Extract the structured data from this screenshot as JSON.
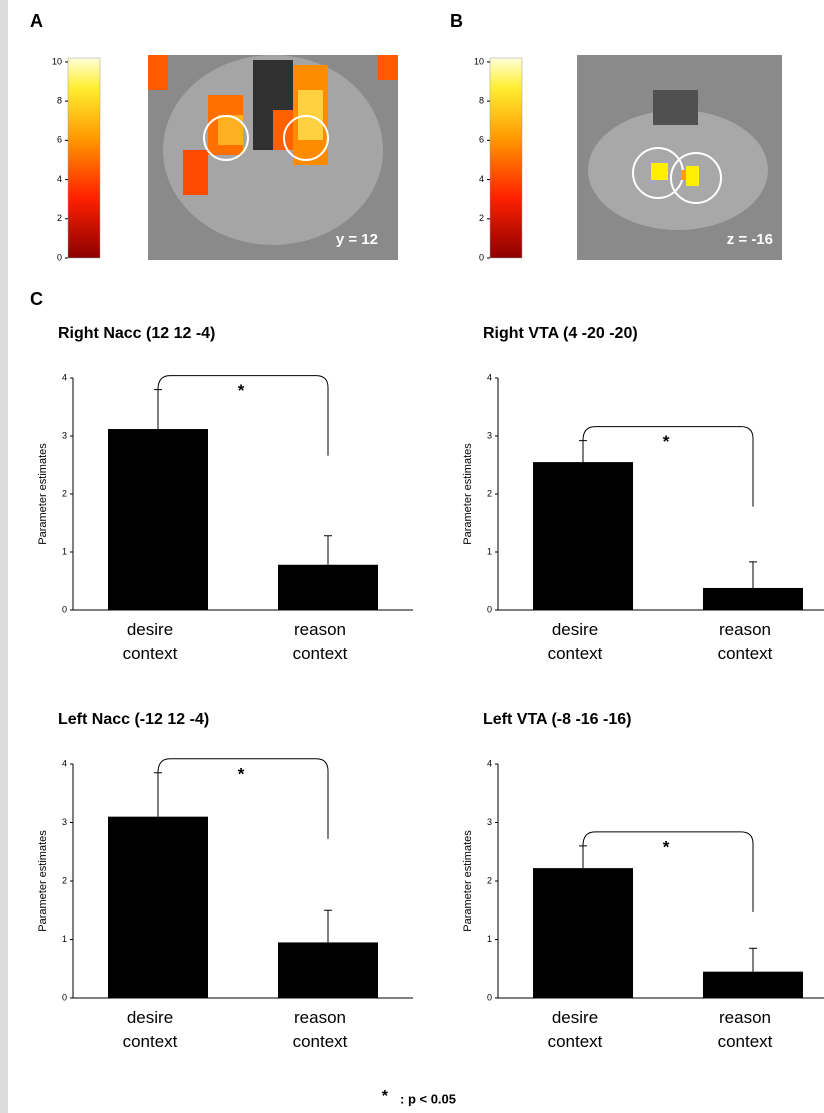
{
  "panel_labels": [
    "A",
    "B",
    "C"
  ],
  "brain_images": [
    {
      "colorbar_lim": [
        0,
        10.2
      ],
      "colorbar_ticks": [
        0,
        2,
        4,
        6,
        8,
        10
      ],
      "slice_label": "y = 12"
    },
    {
      "colorbar_lim": [
        0,
        10.2
      ],
      "colorbar_ticks": [
        0,
        2,
        4,
        6,
        8,
        10
      ],
      "slice_label": "z = -16"
    }
  ],
  "chart_data": [
    {
      "type": "bar",
      "title": "Right Nacc (12 12 -4)",
      "ylabel": "Parameter estimates",
      "categories": [
        "desire context",
        "reason context"
      ],
      "values": [
        3.12,
        0.78
      ],
      "errors": [
        0.68,
        0.5
      ],
      "color": "#000000",
      "ylim": [
        0,
        4
      ],
      "yticks": [
        0,
        1,
        2,
        3,
        4
      ],
      "annotation": "*"
    },
    {
      "type": "bar",
      "title": "Right VTA (4 -20 -20)",
      "ylabel": "Parameter estimates",
      "categories": [
        "desire context",
        "reason context"
      ],
      "values": [
        2.55,
        0.38
      ],
      "errors": [
        0.37,
        0.45
      ],
      "color": "#000000",
      "ylim": [
        0,
        4
      ],
      "yticks": [
        0,
        1,
        2,
        3,
        4
      ],
      "annotation": "*"
    },
    {
      "type": "bar",
      "title": "Left Nacc (-12 12 -4)",
      "ylabel": "Parameter estimates",
      "categories": [
        "desire context",
        "reason context"
      ],
      "values": [
        3.1,
        0.95
      ],
      "errors": [
        0.75,
        0.55
      ],
      "color": "#000000",
      "ylim": [
        0,
        4
      ],
      "yticks": [
        0,
        1,
        2,
        3,
        4
      ],
      "annotation": "*"
    },
    {
      "type": "bar",
      "title": "Left VTA (-8 -16 -16)",
      "ylabel": "Parameter estimates",
      "categories": [
        "desire context",
        "reason context"
      ],
      "values": [
        2.22,
        0.45
      ],
      "errors": [
        0.38,
        0.4
      ],
      "color": "#000000",
      "ylim": [
        0,
        4
      ],
      "yticks": [
        0,
        1,
        2,
        3,
        4
      ],
      "annotation": "*"
    }
  ],
  "footnote": {
    "symbol": "*",
    "text": ": p < 0.05"
  }
}
